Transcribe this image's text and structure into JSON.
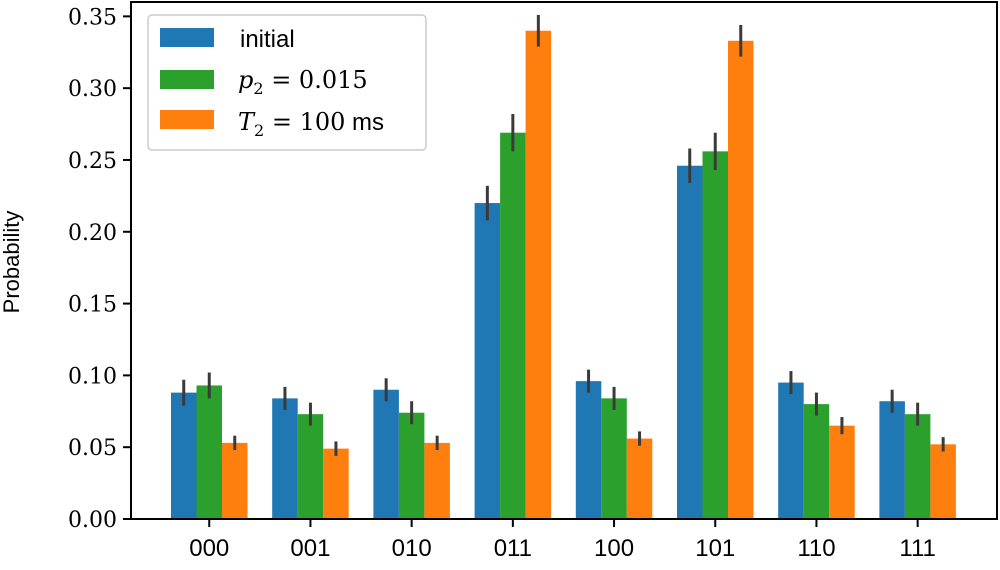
{
  "chart_data": {
    "type": "bar",
    "title": "",
    "xlabel": "",
    "ylabel": "Probability",
    "ylim": [
      0,
      0.36
    ],
    "yticks": [
      "0.00",
      "0.05",
      "0.10",
      "0.15",
      "0.20",
      "0.25",
      "0.30",
      "0.35"
    ],
    "categories": [
      "000",
      "001",
      "010",
      "011",
      "100",
      "101",
      "110",
      "111"
    ],
    "legend_position": "top-left",
    "series": [
      {
        "name": "initial",
        "color": "#1f77b4",
        "values": [
          0.088,
          0.084,
          0.09,
          0.22,
          0.096,
          0.246,
          0.095,
          0.082
        ],
        "errors": [
          0.009,
          0.008,
          0.008,
          0.012,
          0.008,
          0.012,
          0.008,
          0.008
        ]
      },
      {
        "name": "p2 = 0.015",
        "color": "#2ca02c",
        "values": [
          0.093,
          0.073,
          0.074,
          0.269,
          0.084,
          0.256,
          0.08,
          0.073
        ],
        "errors": [
          0.009,
          0.008,
          0.008,
          0.013,
          0.008,
          0.013,
          0.008,
          0.008
        ]
      },
      {
        "name": "T2 = 100 ms",
        "color": "#ff7f0e",
        "values": [
          0.053,
          0.049,
          0.053,
          0.34,
          0.056,
          0.333,
          0.065,
          0.052
        ],
        "errors": [
          0.005,
          0.005,
          0.005,
          0.011,
          0.005,
          0.011,
          0.006,
          0.005
        ]
      }
    ]
  },
  "legend": {
    "initial_label": "initial",
    "p2_symbol": "p",
    "p2_subscript": "2",
    "p2_rest": " = 0.015",
    "t2_symbol": "T",
    "t2_subscript": "2",
    "t2_rest": " = 100",
    "t2_unit": " ms"
  }
}
